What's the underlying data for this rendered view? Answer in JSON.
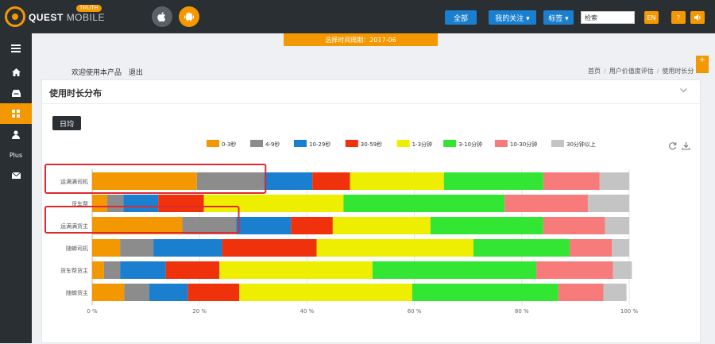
{
  "header": {
    "logo_main": "QUEST",
    "logo_sub": "MOBILE",
    "logo_badge": "TRUTH",
    "apple_label": "",
    "android_label": "",
    "btn_all": "全部",
    "btn_favorites": "我的关注 ▾",
    "btn_tags": "标签 ▾",
    "search_value": "检索",
    "btn_lang": "EN",
    "btn_help": "?",
    "btn_sound": "◀)"
  },
  "period_label": "选择时间周期：2017-06",
  "sidebar": {
    "plus_label": "Plus"
  },
  "welcome": {
    "text": "欢迎使用本产品",
    "logout": "退出"
  },
  "breadcrumb": [
    "首页",
    "用户价值度评估",
    "使用时长分"
  ],
  "panel": {
    "title": "使用时长分布",
    "tab_daily": "日均"
  },
  "colors": {
    "accent": "#f39800",
    "dark": "#2a2f33",
    "blue": "#1a7fcf",
    "highlight": "#e0292e"
  },
  "chart_data": {
    "type": "bar",
    "orientation": "horizontal",
    "stacked": true,
    "normalized_percent": true,
    "categories": [
      "运满满司机",
      "货车帮",
      "运满满货主",
      "随蝉司机",
      "货车帮货主",
      "随蝉货主"
    ],
    "series": [
      {
        "name": "0-3秒",
        "color": "#f39800",
        "values": [
          19.5,
          2.8,
          16.8,
          5.2,
          2.2,
          6.0
        ]
      },
      {
        "name": "4-9秒",
        "color": "#8c8c8c",
        "values": [
          12.5,
          3.0,
          10.0,
          6.2,
          3.0,
          4.6
        ]
      },
      {
        "name": "10-29秒",
        "color": "#1a7fcf",
        "values": [
          9.0,
          6.5,
          10.2,
          12.8,
          8.5,
          7.2
        ]
      },
      {
        "name": "30-59秒",
        "color": "#f0320c",
        "values": [
          7.0,
          8.5,
          7.8,
          17.6,
          10.0,
          9.6
        ]
      },
      {
        "name": "1-3分钟",
        "color": "#eeee00",
        "values": [
          17.5,
          26.0,
          18.2,
          29.2,
          28.5,
          32.2
        ]
      },
      {
        "name": "3-10分钟",
        "color": "#33e633",
        "values": [
          18.5,
          30.0,
          21.0,
          17.9,
          30.5,
          27.2
        ]
      },
      {
        "name": "10-30分钟",
        "color": "#f87b7b",
        "values": [
          10.5,
          15.5,
          11.5,
          7.9,
          14.3,
          8.4
        ]
      },
      {
        "name": "30分钟以上",
        "color": "#c4c4c4",
        "values": [
          5.5,
          7.7,
          4.5,
          3.2,
          3.5,
          4.3
        ]
      }
    ],
    "x_ticks": [
      "0 %",
      "20 %",
      "40 %",
      "60 %",
      "80 %",
      "100 %"
    ],
    "xlim": [
      0,
      100
    ],
    "legend_position": "top-center",
    "highlighted_categories": [
      "运满满司机",
      "运满满货主"
    ]
  }
}
